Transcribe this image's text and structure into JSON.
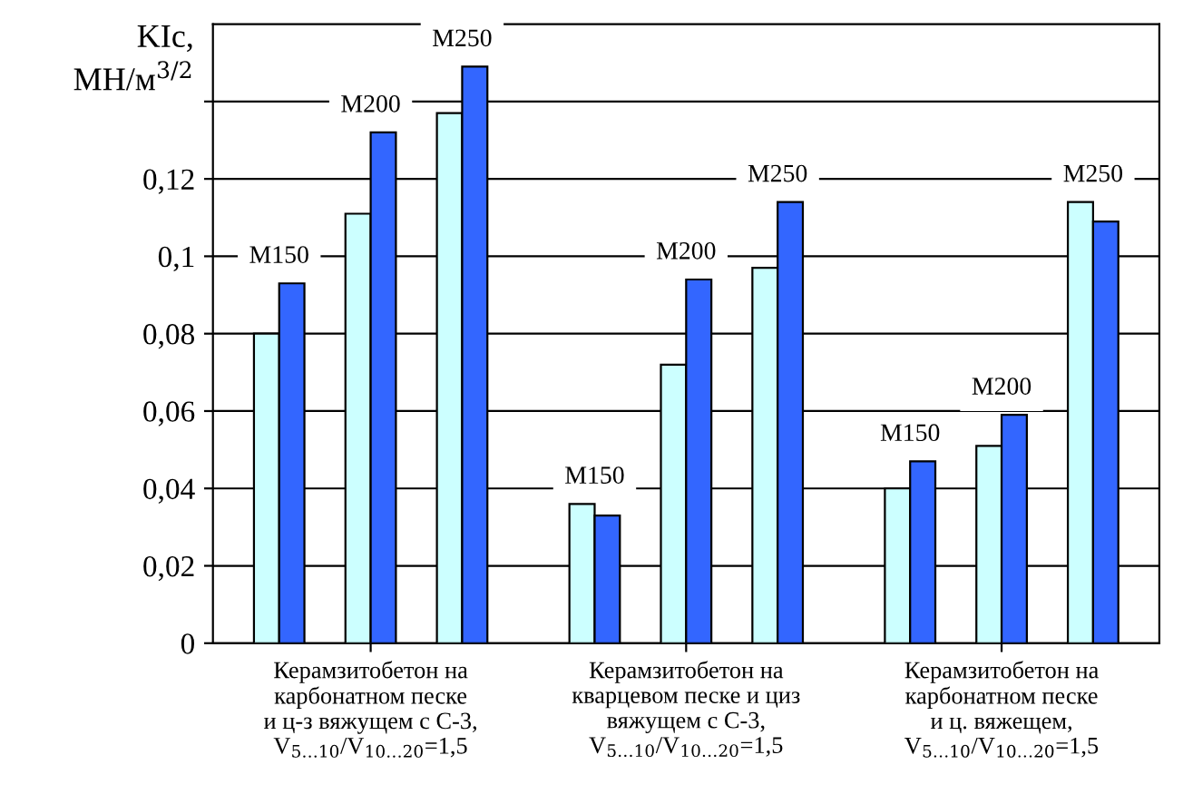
{
  "chart_data": {
    "type": "bar",
    "ylabel": "KIc,\nМН/м$^{3/2}$",
    "categories": [
      "Керамзитобетон на\nкарбонатном песке\nи ц-з вяжущем с С-3,\nV$_{5…10}$/V$_{10…20}$=1,5",
      "Керамзитобетон на\nкварцевом песке и циз\nвяжущем с С-3,\nV$_{5…10}$/V$_{10…20}$=1,5",
      "Керамзитобетон на\nкарбонатном песке\nи ц. вяжещем,\nV$_{5…10}$/V$_{10…20}$=1,5"
    ],
    "series": [
      {
        "color": "#ccffff",
        "values": [
          0.08,
          0.036,
          0.04
        ]
      },
      {
        "color": "#3366ff",
        "values": [
          0.093,
          0.033,
          0.047
        ]
      },
      {
        "color": "#ccffff",
        "values": [
          0.111,
          0.072,
          0.051
        ]
      },
      {
        "color": "#3366ff",
        "values": [
          0.132,
          0.094,
          0.059
        ]
      },
      {
        "color": "#ccffff",
        "values": [
          0.137,
          0.097,
          0.114
        ]
      },
      {
        "color": "#3366ff",
        "values": [
          0.149,
          0.114,
          0.109
        ]
      }
    ],
    "ylim": [
      0,
      0.16
    ],
    "yticks": [
      0,
      {
        "value": 0.02,
        "label": "0,02"
      },
      {
        "value": 0.04,
        "label": "0,04"
      },
      {
        "value": 0.06,
        "label": "0,06"
      },
      {
        "value": 0.08,
        "label": "0,08"
      },
      {
        "value": 0.1,
        "label": "0,1"
      },
      {
        "value": 0.12,
        "label": "0,12"
      },
      {
        "value": 0.14,
        "label": null
      }
    ],
    "grid": "y",
    "annotations": [
      "М150",
      "М200",
      "М250",
      "М150",
      "М200",
      "М250",
      "М150",
      "М200",
      "М250"
    ]
  }
}
